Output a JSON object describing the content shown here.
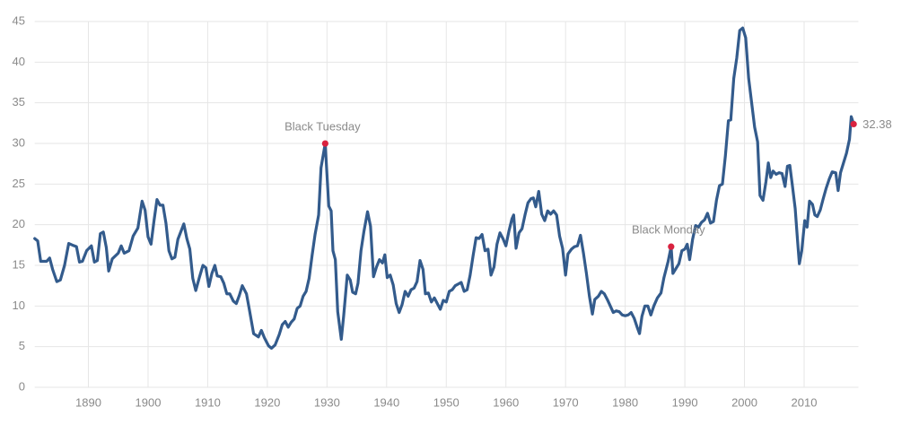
{
  "chart_data": {
    "type": "line",
    "color": "#335b8c",
    "marker_color": "#d9223f",
    "grid": true,
    "xlim": [
      1881,
      2018.5
    ],
    "ylim": [
      0,
      45
    ],
    "xticks": [
      1890,
      1900,
      1910,
      1920,
      1930,
      1940,
      1950,
      1960,
      1970,
      1980,
      1990,
      2000,
      2010
    ],
    "yticks": [
      0,
      5,
      10,
      15,
      20,
      25,
      30,
      35,
      40,
      45
    ],
    "x": [
      1881,
      1881.5,
      1882,
      1883,
      1883.5,
      1884,
      1884.7,
      1885.3,
      1886,
      1886.7,
      1887.3,
      1888,
      1888.5,
      1889,
      1889.7,
      1890.5,
      1891,
      1891.5,
      1892,
      1892.5,
      1893,
      1893.4,
      1894,
      1895,
      1895.5,
      1896,
      1896.8,
      1897.5,
      1898.3,
      1899,
      1899.5,
      1900,
      1900.5,
      1901,
      1901.5,
      1902,
      1902.5,
      1903,
      1903.5,
      1904,
      1904.5,
      1905,
      1906,
      1906.5,
      1907,
      1907.5,
      1908,
      1908.6,
      1909.2,
      1909.7,
      1910.2,
      1910.7,
      1911.2,
      1911.6,
      1912.2,
      1912.7,
      1913.2,
      1913.7,
      1914.3,
      1914.8,
      1915.3,
      1915.8,
      1916.5,
      1917,
      1917.7,
      1918.5,
      1919,
      1919.5,
      1920.2,
      1920.7,
      1921.3,
      1922,
      1922.5,
      1923,
      1923.5,
      1924,
      1924.5,
      1925,
      1925.5,
      1926,
      1926.5,
      1927,
      1927.5,
      1928,
      1928.6,
      1929,
      1929.7,
      1930.3,
      1930.7,
      1931,
      1931.4,
      1931.8,
      1932.4,
      1932.8,
      1933.4,
      1933.9,
      1934.3,
      1934.8,
      1935.2,
      1935.7,
      1936.2,
      1936.8,
      1937.3,
      1937.8,
      1938.3,
      1938.8,
      1939.3,
      1939.7,
      1940.1,
      1940.6,
      1941.1,
      1941.6,
      1942.1,
      1942.6,
      1943.1,
      1943.6,
      1944.1,
      1944.6,
      1945.1,
      1945.6,
      1946.1,
      1946.5,
      1947,
      1947.5,
      1948,
      1948.5,
      1949,
      1949.5,
      1950,
      1950.5,
      1951,
      1951.5,
      1952,
      1952.5,
      1953,
      1953.5,
      1954,
      1954.5,
      1955,
      1955.5,
      1956,
      1956.5,
      1957,
      1957.5,
      1958,
      1958.5,
      1959,
      1959.5,
      1960,
      1960.5,
      1961,
      1961.3,
      1961.7,
      1962.2,
      1962.7,
      1963.2,
      1963.7,
      1964.2,
      1964.6,
      1965,
      1965.5,
      1966,
      1966.5,
      1967,
      1967.5,
      1968,
      1968.5,
      1969,
      1969.5,
      1970,
      1970.4,
      1971,
      1971.5,
      1972,
      1972.5,
      1973,
      1973.5,
      1974,
      1974.5,
      1974.9,
      1975.5,
      1976,
      1976.5,
      1977,
      1977.5,
      1978,
      1978.5,
      1979,
      1979.5,
      1980,
      1980.5,
      1981,
      1981.5,
      1982,
      1982.4,
      1982.8,
      1983.3,
      1983.8,
      1984.3,
      1984.8,
      1985.4,
      1986,
      1986.5,
      1987.2,
      1987.7,
      1988,
      1988.5,
      1989,
      1989.5,
      1990,
      1990.4,
      1990.8,
      1991.3,
      1991.8,
      1992.3,
      1992.8,
      1993.3,
      1993.8,
      1994.3,
      1994.8,
      1995.3,
      1995.8,
      1996.3,
      1996.8,
      1997.3,
      1997.7,
      1998.2,
      1998.7,
      1999.2,
      1999.7,
      2000.2,
      2000.7,
      2001.2,
      2001.7,
      2002.2,
      2002.6,
      2003.1,
      2003.6,
      2004,
      2004.4,
      2004.8,
      2005.3,
      2005.8,
      2006.3,
      2006.8,
      2007.2,
      2007.6,
      2008,
      2008.5,
      2008.9,
      2009.2,
      2009.6,
      2010.1,
      2010.5,
      2010.9,
      2011.4,
      2011.8,
      2012.2,
      2012.7,
      2013.2,
      2013.7,
      2014.2,
      2014.7,
      2015.3,
      2015.7,
      2016.1,
      2016.6,
      2017.1,
      2017.6,
      2017.9,
      2018.3
    ],
    "values": [
      18.3,
      18,
      15.5,
      15.5,
      15.9,
      14.5,
      13,
      13.2,
      15,
      17.7,
      17.5,
      17.3,
      15.4,
      15.5,
      16.8,
      17.4,
      15.4,
      15.6,
      18.9,
      19.1,
      17.2,
      14.3,
      15.8,
      16.5,
      17.4,
      16.5,
      16.8,
      18.6,
      19.6,
      22.9,
      21.8,
      18.5,
      17.6,
      20.5,
      23.1,
      22.4,
      22.4,
      20.2,
      16.8,
      15.8,
      16,
      18.2,
      20.1,
      18.3,
      17,
      13.4,
      11.9,
      13.5,
      15,
      14.7,
      12.4,
      14,
      15,
      13.7,
      13.6,
      12.8,
      11.5,
      11.5,
      10.6,
      10.3,
      11.3,
      12.5,
      11.5,
      9.5,
      6.6,
      6.2,
      7,
      6.1,
      5.1,
      4.8,
      5.2,
      6.5,
      7.7,
      8.1,
      7.4,
      8,
      8.4,
      9.7,
      10,
      11.2,
      11.8,
      13.4,
      16.2,
      18.8,
      21.2,
      27,
      29.99,
      22.3,
      21.7,
      16.8,
      15.7,
      9.3,
      5.9,
      8.8,
      13.8,
      13.2,
      11.7,
      11.5,
      12.8,
      16.8,
      19.2,
      21.6,
      19.8,
      13.6,
      14.8,
      15.7,
      15.3,
      16.3,
      13.5,
      13.8,
      12.6,
      10.3,
      9.2,
      10.2,
      11.8,
      11.2,
      12,
      12.2,
      13,
      15.6,
      14.5,
      11.5,
      11.6,
      10.5,
      11,
      10.3,
      9.6,
      10.7,
      10.5,
      11.8,
      12,
      12.5,
      12.7,
      12.9,
      11.8,
      12,
      13.8,
      16.2,
      18.4,
      18.3,
      18.8,
      16.8,
      17,
      13.8,
      14.8,
      17.6,
      19,
      18.3,
      17.4,
      19.2,
      20.7,
      21.2,
      17.1,
      19,
      19.5,
      21.2,
      22.7,
      23.2,
      23.3,
      22.2,
      24.1,
      21.3,
      20.5,
      21.7,
      21.3,
      21.7,
      21.2,
      18.6,
      17.1,
      13.8,
      16.4,
      17,
      17.3,
      17.4,
      18.7,
      16.5,
      14,
      11.2,
      9,
      10.8,
      11.2,
      11.8,
      11.5,
      10.8,
      10,
      9.2,
      9.4,
      9.3,
      8.9,
      8.8,
      8.9,
      9.2,
      8.5,
      7.4,
      6.6,
      8.7,
      10,
      10,
      8.9,
      10,
      11,
      11.6,
      13.5,
      15.5,
      17.3,
      14,
      14.6,
      15.2,
      16.8,
      17,
      17.6,
      15.7,
      18.2,
      19.9,
      19.7,
      20.3,
      20.6,
      21.4,
      20.2,
      20.4,
      23,
      24.8,
      25,
      28.5,
      32.8,
      32.9,
      38,
      40.5,
      43.9,
      44.2,
      43,
      38,
      35,
      32,
      30.2,
      23.6,
      23,
      25.3,
      27.6,
      25.8,
      26.6,
      26.2,
      26.4,
      26.3,
      24.7,
      27.2,
      27.3,
      25,
      22,
      18,
      15.2,
      16.8,
      20.5,
      19.7,
      22.9,
      22.5,
      21.2,
      21,
      21.8,
      23.2,
      24.5,
      25.6,
      26.5,
      26.4,
      24.2,
      26.4,
      27.6,
      28.8,
      30.5,
      33.3,
      32.38
    ],
    "annotations": [
      {
        "text": "Black Tuesday",
        "x": 1929.7,
        "y": 29.99
      },
      {
        "text": "Black Monday",
        "x": 1987.7,
        "y": 17.3
      },
      {
        "x": 2018.3,
        "y": 32.38
      }
    ]
  }
}
